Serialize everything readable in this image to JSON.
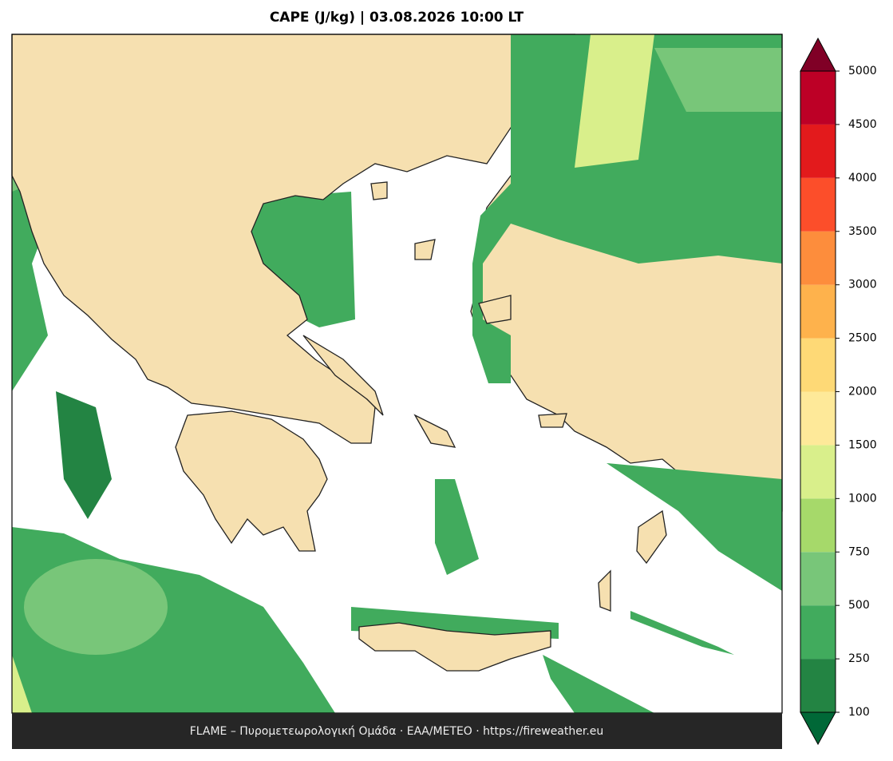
{
  "title": "CAPE (J/kg)  |  03.08.2026 10:00 LT",
  "colorbar": {
    "ticks": [
      100,
      250,
      500,
      750,
      1000,
      1500,
      2000,
      2500,
      3000,
      3500,
      4000,
      4500,
      5000
    ],
    "colors": [
      "#238443",
      "#41ab5d",
      "#78c679",
      "#a6d96a",
      "#d9ef8b",
      "#fee999",
      "#fed976",
      "#feb24c",
      "#fd8d3c",
      "#fc4e2a",
      "#e31a1c",
      "#bd0026"
    ],
    "under_color": "#006837",
    "over_color": "#800026"
  },
  "footer": "FLAME – Πυρομετεωρολογική Ομάδα · ΕΑΑ/METEO · https://fireweather.eu"
}
